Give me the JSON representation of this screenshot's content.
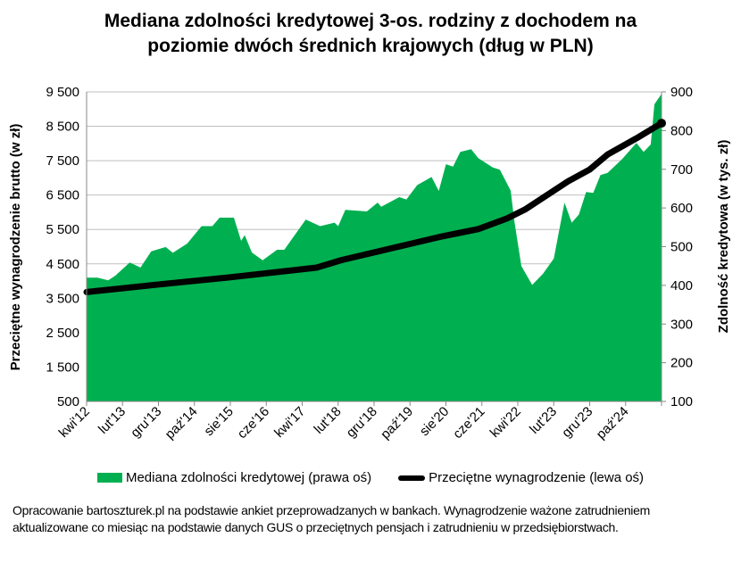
{
  "title_line1": "Mediana zdolności kredytowej 3-os. rodziny z dochodem na",
  "title_line2": "poziomie dwóch średnich krajowych (dług w PLN)",
  "legend": {
    "area_label": "Mediana zdolności kredytowej (prawa oś)",
    "line_label": "Przeciętne wynagrodzenie (lewa oś)"
  },
  "note": "Opracowanie bartoszturek.pl na podstawie ankiet przeprowadzanych w bankach. Wynagrodzenie ważone zatrudnieniem aktualizowane co miesiąc na podstawie danych GUS o przeciętnych pensjach i zatrudnieniu w przedsiębiorstwach.",
  "chart_data": {
    "type": "area+line",
    "ylabel_left": "Przeciętne wynagrodzenie brutto (w zł)",
    "ylabel_right": "Zdolność kredytowa (w tys. zł)",
    "ylim_left": [
      500,
      9500
    ],
    "ylim_right": [
      100,
      900
    ],
    "yticks_left": [
      "9 500",
      "8 500",
      "7 500",
      "6 500",
      "5 500",
      "4 500",
      "3 500",
      "2 500",
      "1 500",
      "500"
    ],
    "yticks_right": [
      "900",
      "800",
      "700",
      "600",
      "500",
      "400",
      "300",
      "200",
      "100"
    ],
    "xlim": [
      "2012-04",
      "2025-08"
    ],
    "xticks": [
      "kwi'12",
      "lut'13",
      "gru'13",
      "paź'14",
      "sie'15",
      "cze'16",
      "kwi'17",
      "lut'18",
      "gru'18",
      "paź'19",
      "sie'20",
      "cze'21",
      "kwi'22",
      "lut'23",
      "gru'23",
      "paź'24"
    ],
    "grid": true,
    "legend_position": "bottom",
    "colors": {
      "area": "#00b050",
      "line": "#000000"
    },
    "series": [
      {
        "name": "Mediana zdolności kredytowej (prawa oś)",
        "axis": "right",
        "kind": "area",
        "points": [
          [
            "2012-04",
            420
          ],
          [
            "2012-07",
            420
          ],
          [
            "2012-10",
            413
          ],
          [
            "2012-12",
            425
          ],
          [
            "2013-04",
            459
          ],
          [
            "2013-07",
            446
          ],
          [
            "2013-10",
            488
          ],
          [
            "2014-02",
            499
          ],
          [
            "2014-04",
            484
          ],
          [
            "2014-08",
            508
          ],
          [
            "2014-12",
            553
          ],
          [
            "2015-03",
            553
          ],
          [
            "2015-05",
            575
          ],
          [
            "2015-09",
            575
          ],
          [
            "2015-11",
            515
          ],
          [
            "2015-12",
            530
          ],
          [
            "2016-02",
            485
          ],
          [
            "2016-05",
            465
          ],
          [
            "2016-09",
            492
          ],
          [
            "2016-11",
            492
          ],
          [
            "2017-05",
            570
          ],
          [
            "2017-09",
            553
          ],
          [
            "2018-01",
            562
          ],
          [
            "2018-02",
            553
          ],
          [
            "2018-04",
            595
          ],
          [
            "2018-10",
            591
          ],
          [
            "2019-01",
            614
          ],
          [
            "2019-02",
            603
          ],
          [
            "2019-07",
            628
          ],
          [
            "2019-09",
            622
          ],
          [
            "2019-12",
            659
          ],
          [
            "2020-04",
            680
          ],
          [
            "2020-06",
            644
          ],
          [
            "2020-08",
            713
          ],
          [
            "2020-10",
            707
          ],
          [
            "2020-12",
            745
          ],
          [
            "2021-03",
            752
          ],
          [
            "2021-05",
            729
          ],
          [
            "2021-09",
            705
          ],
          [
            "2021-11",
            699
          ],
          [
            "2022-02",
            645
          ],
          [
            "2022-03",
            568
          ],
          [
            "2022-05",
            450
          ],
          [
            "2022-08",
            401
          ],
          [
            "2022-11",
            430
          ],
          [
            "2023-02",
            469
          ],
          [
            "2023-05",
            614
          ],
          [
            "2023-07",
            562
          ],
          [
            "2023-09",
            583
          ],
          [
            "2023-11",
            641
          ],
          [
            "2024-01",
            639
          ],
          [
            "2024-03",
            685
          ],
          [
            "2024-05",
            691
          ],
          [
            "2024-09",
            726
          ],
          [
            "2025-01",
            768
          ],
          [
            "2025-03",
            745
          ],
          [
            "2025-05",
            764
          ],
          [
            "2025-06",
            868
          ],
          [
            "2025-08",
            895
          ]
        ]
      },
      {
        "name": "Przeciętne wynagrodzenie (lewa oś)",
        "axis": "left",
        "kind": "line",
        "points": [
          [
            "2012-04",
            3680
          ],
          [
            "2013-11",
            3890
          ],
          [
            "2015-08",
            4110
          ],
          [
            "2017-08",
            4390
          ],
          [
            "2018-03",
            4610
          ],
          [
            "2020-07",
            5300
          ],
          [
            "2021-05",
            5510
          ],
          [
            "2022-01",
            5820
          ],
          [
            "2022-06",
            6080
          ],
          [
            "2023-06",
            6900
          ],
          [
            "2023-12",
            7240
          ],
          [
            "2024-05",
            7680
          ],
          [
            "2025-01",
            8150
          ],
          [
            "2025-08",
            8590
          ]
        ]
      }
    ]
  }
}
